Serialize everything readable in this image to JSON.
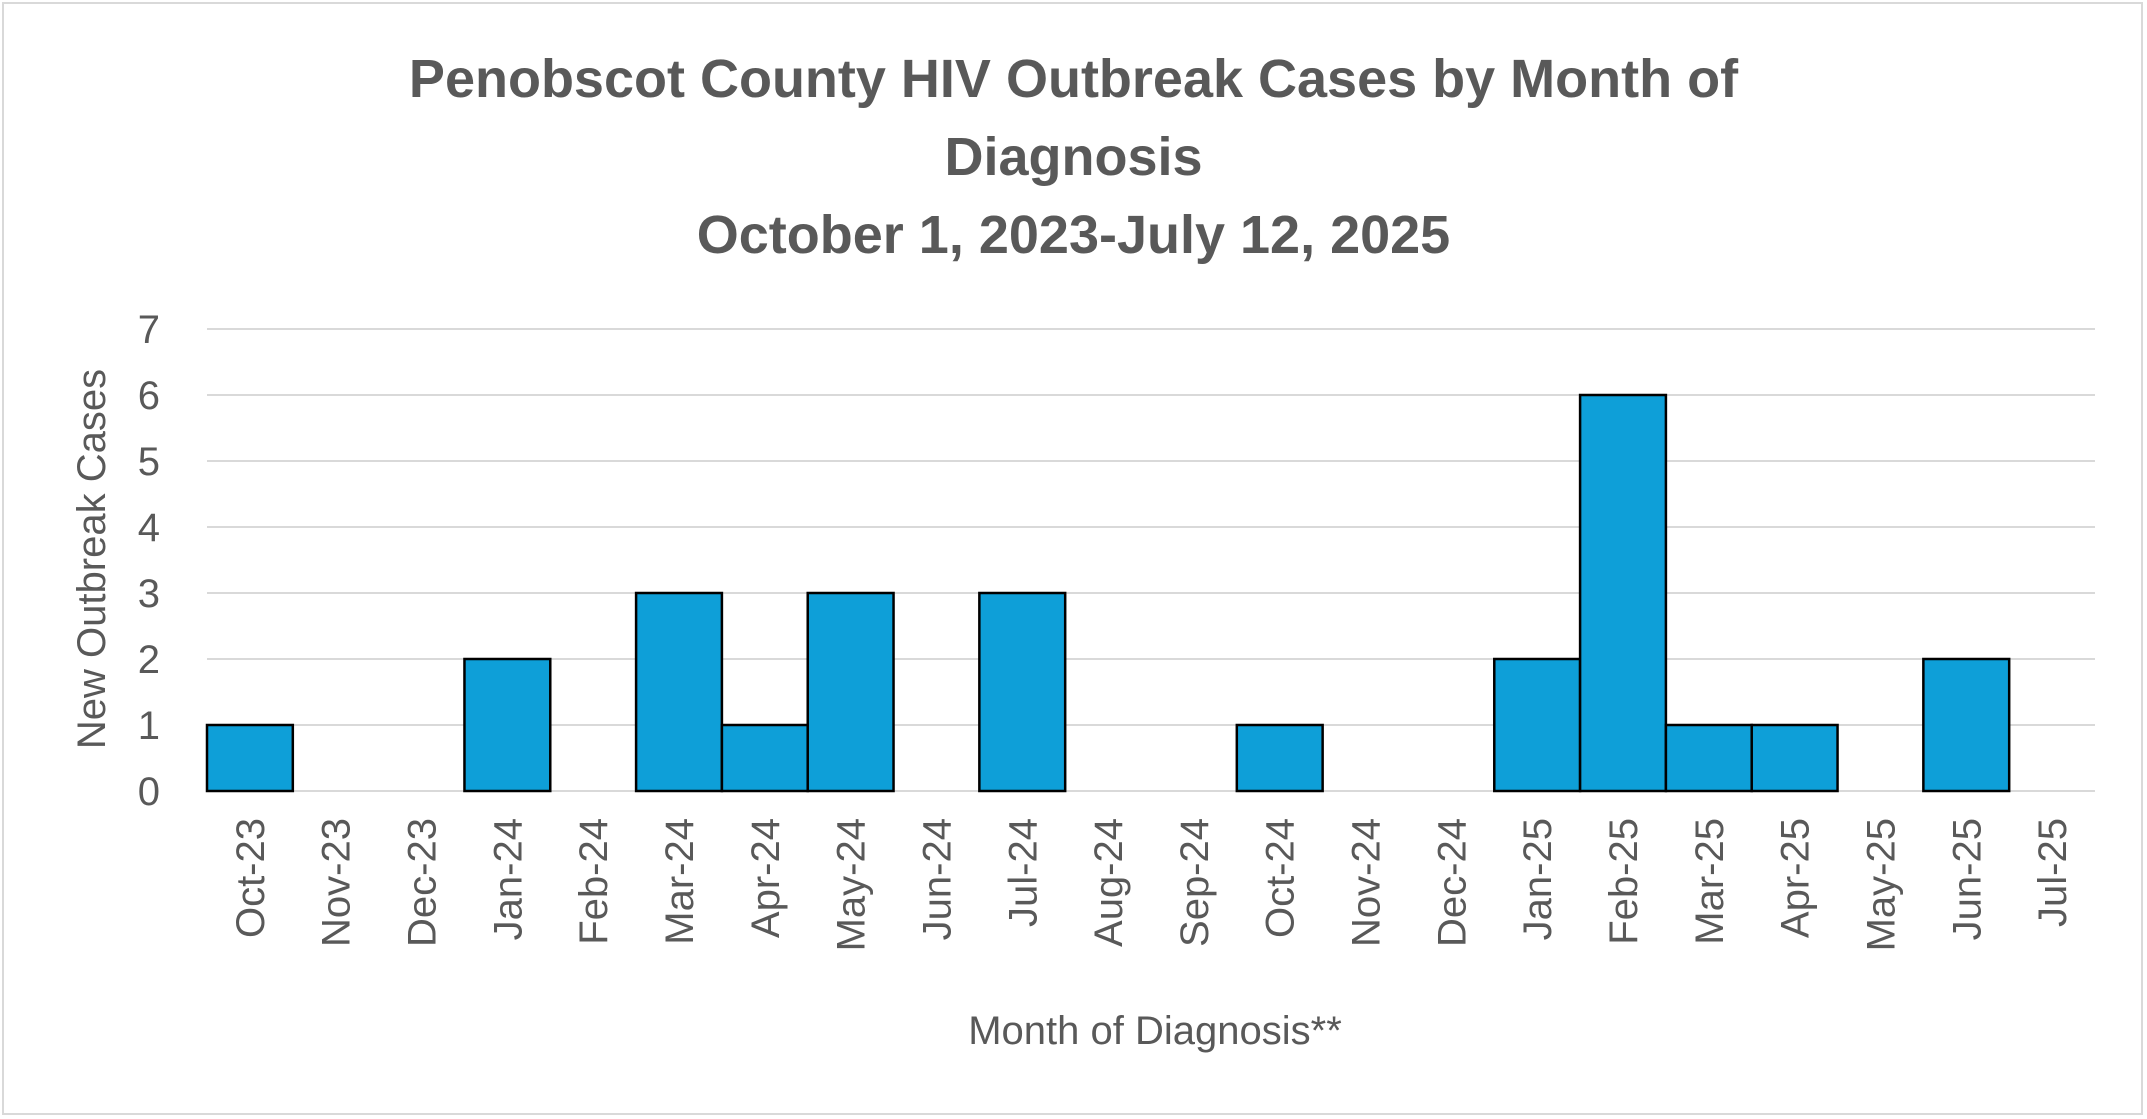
{
  "chart_data": {
    "type": "bar",
    "title_lines": [
      "Penobscot County HIV Outbreak Cases by Month of",
      "Diagnosis",
      "October 1, 2023-July 12, 2025"
    ],
    "xlabel": "Month of Diagnosis**",
    "ylabel": "New Outbreak Cases",
    "ylim": [
      0,
      7
    ],
    "yticks": [
      "0",
      "1",
      "2",
      "3",
      "4",
      "5",
      "6",
      "7"
    ],
    "grid": true,
    "legend": "none",
    "bar_color": "#0e9fd8",
    "bar_edge_color": "#000000",
    "categories": [
      "Oct-23",
      "Nov-23",
      "Dec-23",
      "Jan-24",
      "Feb-24",
      "Mar-24",
      "Apr-24",
      "May-24",
      "Jun-24",
      "Jul-24",
      "Aug-24",
      "Sep-24",
      "Oct-24",
      "Nov-24",
      "Dec-24",
      "Jan-25",
      "Feb-25",
      "Mar-25",
      "Apr-25",
      "May-25",
      "Jun-25",
      "Jul-25"
    ],
    "values": [
      1,
      0,
      0,
      2,
      0,
      3,
      1,
      3,
      0,
      3,
      0,
      0,
      1,
      0,
      0,
      2,
      6,
      1,
      1,
      0,
      2,
      0
    ]
  }
}
